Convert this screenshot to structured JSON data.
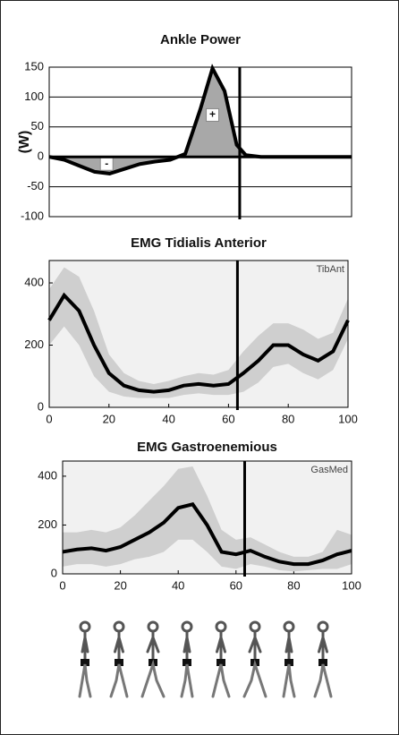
{
  "chart_data": [
    {
      "type": "area",
      "title": "Ankle Power",
      "ylabel": "(W)",
      "x": [
        0,
        5,
        10,
        15,
        20,
        25,
        30,
        35,
        40,
        45,
        50,
        54,
        58,
        62,
        65,
        70,
        80,
        90,
        100
      ],
      "values": [
        0,
        -5,
        -15,
        -25,
        -28,
        -20,
        -12,
        -8,
        -5,
        5,
        80,
        148,
        110,
        20,
        3,
        0,
        0,
        0,
        0
      ],
      "color": "#000000",
      "fill": "#a8a8a8",
      "xlim": [
        0,
        100
      ],
      "ylim": [
        -100,
        150
      ],
      "yticks": [
        -100,
        -50,
        0,
        50,
        100,
        150
      ],
      "grid": true,
      "vline": 63,
      "annotations": [
        "-",
        "+"
      ]
    },
    {
      "type": "band-line",
      "title": "EMG Tidialis Anterior",
      "label": "TibAnt",
      "x": [
        0,
        5,
        10,
        15,
        20,
        25,
        30,
        35,
        40,
        45,
        50,
        55,
        60,
        65,
        70,
        75,
        80,
        85,
        90,
        95,
        100
      ],
      "values": [
        280,
        360,
        310,
        200,
        110,
        70,
        55,
        50,
        55,
        70,
        75,
        70,
        75,
        110,
        150,
        200,
        200,
        170,
        150,
        180,
        280
      ],
      "upper": [
        380,
        450,
        420,
        310,
        170,
        110,
        85,
        75,
        85,
        100,
        110,
        105,
        120,
        180,
        230,
        270,
        270,
        250,
        220,
        240,
        350
      ],
      "lower": [
        200,
        260,
        200,
        100,
        50,
        35,
        30,
        30,
        30,
        40,
        45,
        40,
        40,
        50,
        80,
        130,
        140,
        110,
        90,
        120,
        220
      ],
      "color": "#000000",
      "band_color": "#cfcfcf",
      "xlim": [
        0,
        100
      ],
      "xticks": [
        0,
        20,
        40,
        60,
        80,
        100
      ],
      "ylim": [
        0,
        472
      ],
      "yticks": [
        0,
        200,
        400
      ],
      "grid": false,
      "vline": 63
    },
    {
      "type": "band-line",
      "title": "EMG Gastroenemious",
      "label": "GasMed",
      "x": [
        0,
        5,
        10,
        15,
        20,
        25,
        30,
        35,
        40,
        45,
        50,
        55,
        60,
        65,
        70,
        75,
        80,
        85,
        90,
        95,
        100
      ],
      "values": [
        90,
        100,
        105,
        95,
        110,
        140,
        170,
        210,
        270,
        285,
        200,
        90,
        80,
        95,
        70,
        50,
        40,
        40,
        55,
        80,
        95
      ],
      "upper": [
        170,
        170,
        180,
        170,
        190,
        240,
        300,
        360,
        430,
        440,
        320,
        180,
        140,
        150,
        120,
        90,
        70,
        70,
        90,
        180,
        160
      ],
      "lower": [
        30,
        40,
        40,
        30,
        40,
        60,
        70,
        90,
        140,
        140,
        90,
        30,
        20,
        40,
        30,
        15,
        10,
        15,
        20,
        20,
        40
      ],
      "color": "#000000",
      "band_color": "#cfcfcf",
      "xlim": [
        0,
        100
      ],
      "xticks": [
        0,
        20,
        40,
        60,
        80,
        100
      ],
      "ylim": [
        0,
        462
      ],
      "yticks": [
        0,
        200,
        400
      ],
      "grid": false,
      "vline": 63
    }
  ]
}
